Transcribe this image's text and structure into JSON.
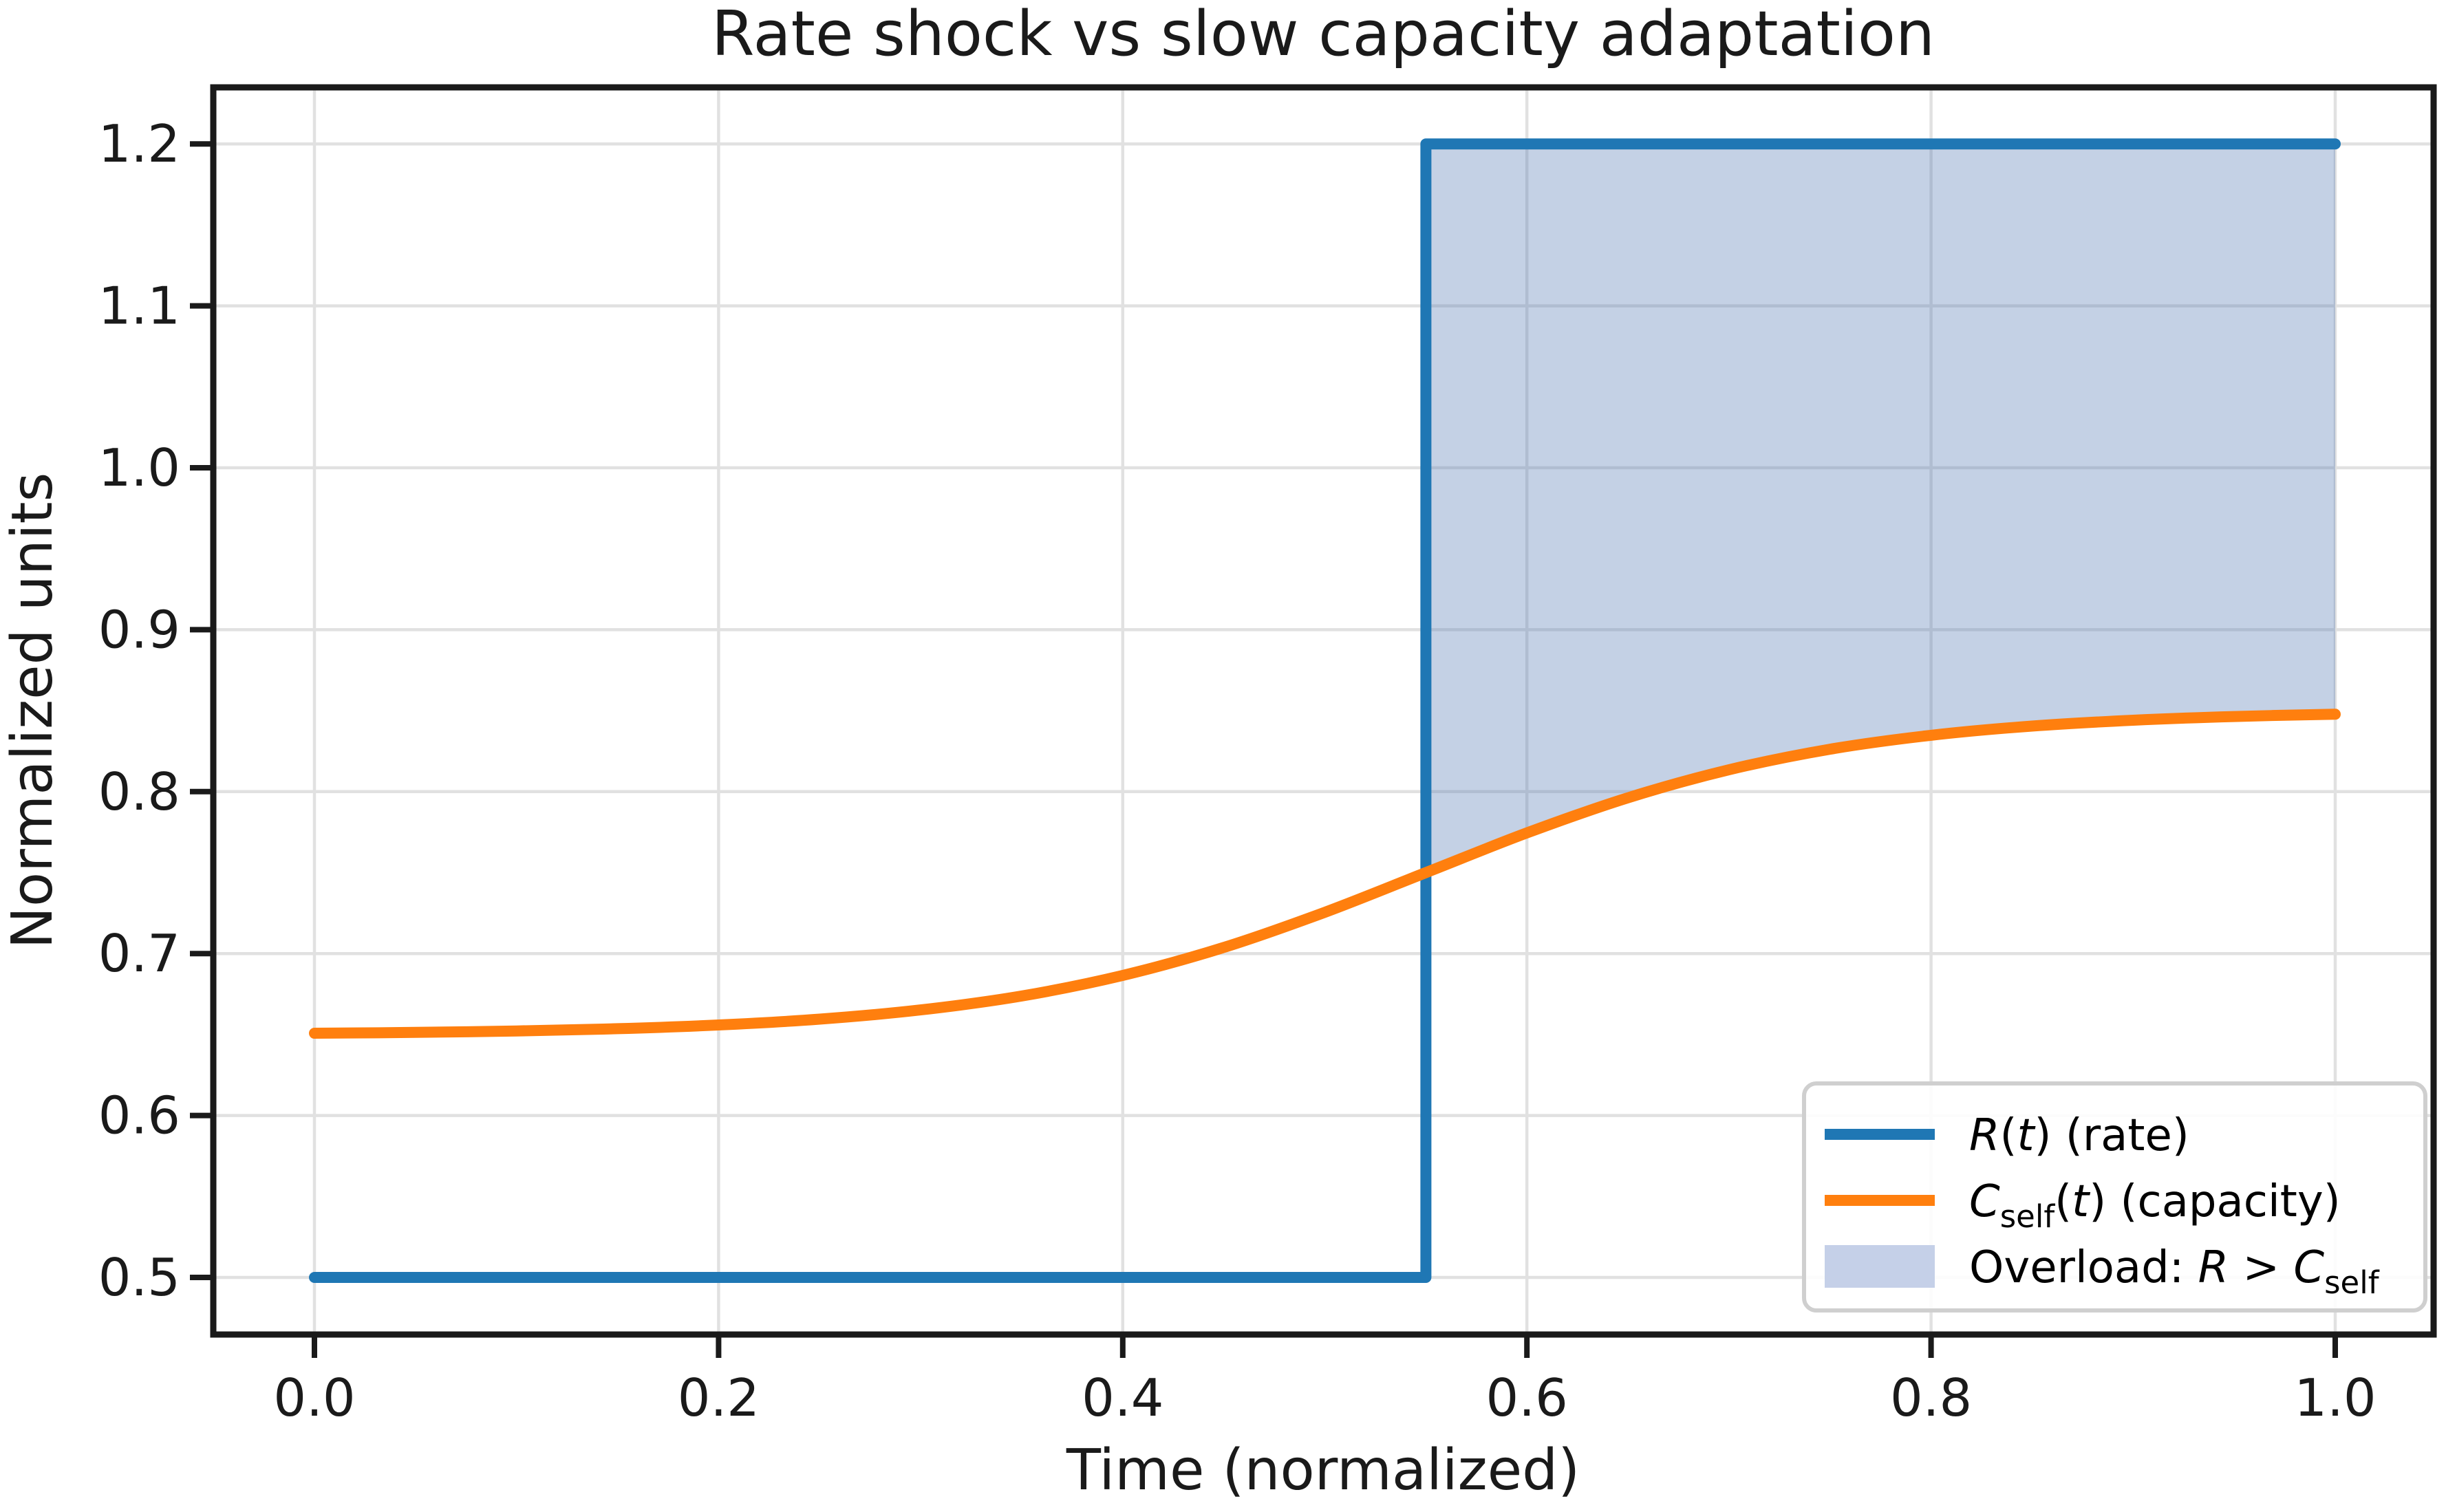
{
  "title": "Rate shock vs slow capacity adaptation",
  "axes": {
    "xlabel": "Time (normalized)",
    "ylabel": "Normalized units",
    "x_tick_labels": [
      "0.0",
      "0.2",
      "0.4",
      "0.6",
      "0.8",
      "1.0"
    ],
    "y_tick_labels": [
      "0.5",
      "0.6",
      "0.7",
      "0.8",
      "0.9",
      "1.0",
      "1.1",
      "1.2"
    ]
  },
  "legend": {
    "items": [
      {
        "name": "rate",
        "swatch": "line",
        "parts": [
          {
            "text": "R",
            "style": "italic"
          },
          {
            "text": "(",
            "style": "normal"
          },
          {
            "text": "t",
            "style": "italic"
          },
          {
            "text": ") (rate)",
            "style": "normal"
          }
        ]
      },
      {
        "name": "capacity",
        "swatch": "line",
        "parts": [
          {
            "text": "C",
            "style": "italic"
          },
          {
            "text": "self",
            "style": "sub"
          },
          {
            "text": "(",
            "style": "normal"
          },
          {
            "text": "t",
            "style": "italic"
          },
          {
            "text": ") (capacity)",
            "style": "normal"
          }
        ]
      },
      {
        "name": "overload",
        "swatch": "patch",
        "parts": [
          {
            "text": "Overload: ",
            "style": "normal"
          },
          {
            "text": "R",
            "style": "italic"
          },
          {
            "text": " > ",
            "style": "normal"
          },
          {
            "text": "C",
            "style": "italic"
          },
          {
            "text": "self",
            "style": "sub"
          }
        ]
      }
    ]
  },
  "colors": {
    "rate_line": "#1f77b4",
    "capacity_line": "#ff7f0e",
    "overload_fill": "rgba(76,114,176,0.33)",
    "overload_fill_legend": "#c5d0e8",
    "grid": "#e1e1e1",
    "spine": "#1a1a1a",
    "text": "#1a1a1a",
    "legend_border": "#cfcfcf",
    "legend_bg": "rgba(255,255,255,0.9)"
  },
  "chart_data": {
    "type": "line",
    "title": "Rate shock vs slow capacity adaptation",
    "xlabel": "Time (normalized)",
    "ylabel": "Normalized units",
    "xlim": [
      -0.05,
      1.05
    ],
    "ylim": [
      0.465,
      1.235
    ],
    "x_ticks": [
      0.0,
      0.2,
      0.4,
      0.6,
      0.8,
      1.0
    ],
    "y_ticks": [
      0.5,
      0.6,
      0.7,
      0.8,
      0.9,
      1.0,
      1.1,
      1.2
    ],
    "grid": true,
    "legend_position": "lower right",
    "series": [
      {
        "name": "R(t) (rate)",
        "type": "step",
        "color": "#1f77b4",
        "x": [
          0.0,
          0.55,
          0.55,
          1.0
        ],
        "values": [
          0.5,
          0.5,
          1.2,
          1.2
        ],
        "description": "constant 0.5, steps up to 1.2 at t=0.55"
      },
      {
        "name": "C_self(t) (capacity)",
        "type": "smooth",
        "color": "#ff7f0e",
        "model": "C(t) = 0.65 + 0.2 / (1 + exp(-10*(t-0.55)))",
        "x": [
          0.0,
          0.05,
          0.1,
          0.15,
          0.2,
          0.25,
          0.3,
          0.35,
          0.4,
          0.45,
          0.5,
          0.55,
          0.6,
          0.65,
          0.7,
          0.75,
          0.8,
          0.85,
          0.9,
          0.95,
          1.0
        ],
        "values": [
          0.6508,
          0.6513,
          0.6522,
          0.6536,
          0.6559,
          0.6595,
          0.6652,
          0.6738,
          0.6865,
          0.7038,
          0.7255,
          0.75,
          0.7745,
          0.7962,
          0.8135,
          0.8262,
          0.8348,
          0.8405,
          0.8441,
          0.8464,
          0.8478
        ]
      }
    ],
    "overload_region": {
      "name": "Overload: R > C_self",
      "x_range": [
        0.55,
        1.0
      ],
      "upper": 1.2,
      "lower": "C_self(t)"
    }
  }
}
